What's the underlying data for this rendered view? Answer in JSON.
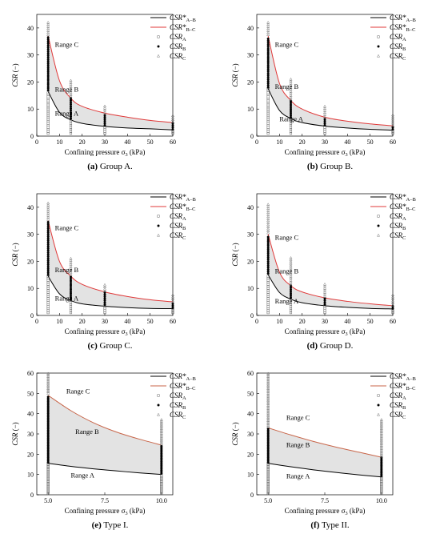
{
  "figure": {
    "legend": {
      "csr_ab": {
        "base": "CSR*",
        "sub": "A–B"
      },
      "csr_bc": {
        "base": "CSR*",
        "sub": "B–C"
      },
      "csr_a": {
        "base": "CSR",
        "sub": "A"
      },
      "csr_b": {
        "base": "CSR",
        "sub": "B"
      },
      "csr_c": {
        "base": "CSR",
        "sub": "C"
      }
    },
    "colors": {
      "boundary_ab": "#000000",
      "boundary_bc": "#e03a3a",
      "boundary_bc_type": "#c8664a",
      "band_fill": "#e3e3e3"
    },
    "axis": {
      "ylabel": "CSR (−)",
      "xlabel_prefix": "Confining pressure σ",
      "xlabel_sub": "3",
      "xlabel_suffix": " (kPa)"
    },
    "range_labels": {
      "a": "Range A",
      "b": "Range B",
      "c": "Range C"
    }
  },
  "panels": [
    {
      "letter": "(a)",
      "caption": " Group A."
    },
    {
      "letter": "(b)",
      "caption": " Group B."
    },
    {
      "letter": "(c)",
      "caption": " Group C."
    },
    {
      "letter": "(d)",
      "caption": " Group D."
    },
    {
      "letter": "(e)",
      "caption": " Type I."
    },
    {
      "letter": "(f)",
      "caption": " Type II."
    }
  ],
  "chart_data": [
    {
      "type": "scatter",
      "panel": "(a) Group A.",
      "xlim": [
        0,
        60
      ],
      "ylim": [
        0,
        45
      ],
      "xticks": [
        "0",
        "10",
        "20",
        "30",
        "40",
        "50",
        "60"
      ],
      "yticks": [
        "0",
        "10",
        "20",
        "30",
        "40"
      ],
      "curve_ab": {
        "x": [
          5,
          10,
          15,
          20,
          30,
          40,
          50,
          60
        ],
        "y": [
          16.5,
          8.8,
          6.0,
          4.7,
          3.6,
          3.0,
          2.7,
          2.3
        ]
      },
      "curve_bc": {
        "x": [
          5,
          10,
          15,
          20,
          30,
          40,
          50,
          60
        ],
        "y": [
          37,
          20.5,
          14.0,
          11.0,
          8.5,
          7.0,
          5.8,
          5.0
        ]
      },
      "points": {
        "x": [
          5,
          15,
          30,
          60
        ],
        "a": [
          [
            1,
            16.5
          ],
          [
            1,
            6.0
          ],
          [
            1,
            3.6
          ],
          [
            1,
            2.3
          ]
        ],
        "b": [
          [
            17,
            36.5
          ],
          [
            6.5,
            14
          ],
          [
            4,
            8.4
          ],
          [
            2.5,
            5
          ]
        ],
        "c": [
          [
            37.5,
            42
          ],
          [
            14.5,
            21
          ],
          [
            8.8,
            11.5
          ],
          [
            5.3,
            8
          ]
        ]
      },
      "region_labels": {
        "c": [
          8,
          33
        ],
        "b": [
          8,
          16.5
        ],
        "a": [
          8,
          7.5
        ]
      },
      "legend_position": "top-right",
      "grid": false
    },
    {
      "type": "scatter",
      "panel": "(b) Group B.",
      "xlim": [
        0,
        60
      ],
      "ylim": [
        0,
        45
      ],
      "xticks": [
        "0",
        "10",
        "20",
        "30",
        "40",
        "50",
        "60"
      ],
      "yticks": [
        "0",
        "10",
        "20",
        "30",
        "40"
      ],
      "curve_ab": {
        "x": [
          5,
          10,
          15,
          20,
          30,
          40,
          50,
          60
        ],
        "y": [
          17.5,
          9.5,
          6.5,
          5.0,
          3.7,
          3.0,
          2.5,
          2.2
        ]
      },
      "curve_bc": {
        "x": [
          5,
          10,
          15,
          20,
          30,
          40,
          50,
          60
        ],
        "y": [
          37,
          19.5,
          13.2,
          10.0,
          7.0,
          5.5,
          4.5,
          3.8
        ]
      },
      "points": {
        "x": [
          5,
          15,
          30,
          60
        ],
        "a": [
          [
            1,
            17.5
          ],
          [
            1,
            6.5
          ],
          [
            1,
            3.7
          ],
          [
            1,
            2.2
          ]
        ],
        "b": [
          [
            18,
            36.5
          ],
          [
            7,
            13
          ],
          [
            4,
            6.8
          ],
          [
            2.5,
            3.8
          ]
        ],
        "c": [
          [
            37.5,
            42
          ],
          [
            13.5,
            21
          ],
          [
            7.2,
            11.5
          ],
          [
            4,
            8
          ]
        ]
      },
      "region_labels": {
        "c": [
          8,
          33
        ],
        "b": [
          8,
          17.5
        ],
        "a": [
          10,
          5.5
        ]
      },
      "legend_position": "top-right",
      "grid": false
    },
    {
      "type": "scatter",
      "panel": "(c) Group C.",
      "xlim": [
        0,
        60
      ],
      "ylim": [
        0,
        45
      ],
      "xticks": [
        "0",
        "10",
        "20",
        "30",
        "40",
        "50",
        "60"
      ],
      "yticks": [
        "0",
        "10",
        "20",
        "30",
        "40"
      ],
      "curve_ab": {
        "x": [
          5,
          10,
          15,
          20,
          30,
          40,
          50,
          60
        ],
        "y": [
          14.5,
          8.0,
          5.5,
          4.3,
          3.4,
          2.9,
          2.6,
          2.5
        ]
      },
      "curve_bc": {
        "x": [
          5,
          10,
          15,
          20,
          30,
          40,
          50,
          60
        ],
        "y": [
          35,
          20.0,
          14.5,
          11.5,
          8.7,
          7.0,
          5.8,
          5.0
        ]
      },
      "points": {
        "x": [
          5,
          15,
          30,
          60
        ],
        "a": [
          [
            1,
            14.5
          ],
          [
            1,
            5.5
          ],
          [
            1,
            3.4
          ],
          [
            1,
            2.5
          ]
        ],
        "b": [
          [
            15,
            34.5
          ],
          [
            6,
            14.5
          ],
          [
            4,
            8.5
          ],
          [
            2.8,
            5
          ]
        ],
        "c": [
          [
            35.5,
            41.5
          ],
          [
            15,
            21
          ],
          [
            9,
            11.5
          ],
          [
            5.3,
            8
          ]
        ]
      },
      "region_labels": {
        "c": [
          8,
          31.5
        ],
        "b": [
          8,
          16
        ],
        "a": [
          8,
          5.5
        ]
      },
      "legend_position": "top-right",
      "grid": false
    },
    {
      "type": "scatter",
      "panel": "(d) Group D.",
      "xlim": [
        0,
        60
      ],
      "ylim": [
        0,
        45
      ],
      "xticks": [
        "0",
        "10",
        "20",
        "30",
        "40",
        "50",
        "60"
      ],
      "yticks": [
        "0",
        "10",
        "20",
        "30",
        "40"
      ],
      "curve_ab": {
        "x": [
          5,
          10,
          15,
          20,
          30,
          40,
          50,
          60
        ],
        "y": [
          15.0,
          8.5,
          6.0,
          4.7,
          3.6,
          3.0,
          2.6,
          2.4
        ]
      },
      "curve_bc": {
        "x": [
          5,
          10,
          15,
          20,
          30,
          40,
          50,
          60
        ],
        "y": [
          30,
          16.0,
          11.0,
          8.7,
          6.5,
          5.2,
          4.3,
          3.6
        ]
      },
      "points": {
        "x": [
          5,
          15,
          30,
          60
        ],
        "a": [
          [
            1,
            15
          ],
          [
            1,
            6
          ],
          [
            1,
            3.6
          ],
          [
            1,
            2.4
          ]
        ],
        "b": [
          [
            15.5,
            29.5
          ],
          [
            6.5,
            11
          ],
          [
            4,
            6.5
          ],
          [
            2.6,
            3.6
          ]
        ],
        "c": [
          [
            30.5,
            41.5
          ],
          [
            11.5,
            21.5
          ],
          [
            7,
            11.5
          ],
          [
            3.8,
            8
          ]
        ]
      },
      "region_labels": {
        "c": [
          8,
          28
        ],
        "b": [
          8,
          15.5
        ],
        "a": [
          8,
          4.5
        ]
      },
      "legend_position": "top-right",
      "grid": false
    },
    {
      "type": "scatter",
      "panel": "(e) Type I.",
      "xlim": [
        4.5,
        10.5
      ],
      "ylim": [
        0,
        60
      ],
      "xticks": [
        "5.0",
        "7.5",
        "10.0"
      ],
      "xtick_values": [
        5,
        7.5,
        10
      ],
      "yticks": [
        "0",
        "10",
        "20",
        "30",
        "40",
        "50",
        "60"
      ],
      "curve_ab": {
        "x": [
          5,
          6,
          7,
          8,
          9,
          10
        ],
        "y": [
          15.5,
          14.0,
          12.8,
          11.8,
          10.8,
          10.0
        ]
      },
      "curve_bc": {
        "x": [
          5,
          6,
          7,
          8,
          9,
          10
        ],
        "y": [
          49,
          41.5,
          35.5,
          31.0,
          27.5,
          24.5
        ]
      },
      "points": {
        "x": [
          5,
          10
        ],
        "a": [
          [
            0.5,
            15.5
          ],
          [
            0.5,
            10
          ]
        ],
        "b": [
          [
            16,
            48.5
          ],
          [
            10.5,
            24.5
          ]
        ],
        "c": [
          [
            50,
            60
          ],
          [
            25,
            37
          ]
        ]
      },
      "region_labels": {
        "c": [
          5.8,
          50
        ],
        "b": [
          6.2,
          30
        ],
        "a": [
          6.0,
          8.5
        ]
      },
      "legend_position": "top-right",
      "grid": false
    },
    {
      "type": "scatter",
      "panel": "(f) Type II.",
      "xlim": [
        4.5,
        10.5
      ],
      "ylim": [
        0,
        60
      ],
      "xticks": [
        "5.0",
        "7.5",
        "10.0"
      ],
      "xtick_values": [
        5,
        7.5,
        10
      ],
      "yticks": [
        "0",
        "10",
        "20",
        "30",
        "40",
        "50",
        "60"
      ],
      "curve_ab": {
        "x": [
          5,
          6,
          7,
          8,
          9,
          10
        ],
        "y": [
          15.5,
          13.8,
          12.3,
          11.0,
          9.8,
          8.8
        ]
      },
      "curve_bc": {
        "x": [
          5,
          6,
          7,
          8,
          9,
          10
        ],
        "y": [
          33,
          29.5,
          26.3,
          23.5,
          21.0,
          18.5
        ]
      },
      "points": {
        "x": [
          5,
          10
        ],
        "a": [
          [
            0.5,
            15.5
          ],
          [
            0.5,
            8.8
          ]
        ],
        "b": [
          [
            16,
            32.5
          ],
          [
            9.3,
            18.5
          ]
        ],
        "c": [
          [
            33.5,
            60
          ],
          [
            19,
            37
          ]
        ]
      },
      "region_labels": {
        "c": [
          5.8,
          37
        ],
        "b": [
          5.8,
          23.5
        ],
        "a": [
          5.8,
          8
        ]
      },
      "legend_position": "top-right",
      "grid": false
    }
  ]
}
